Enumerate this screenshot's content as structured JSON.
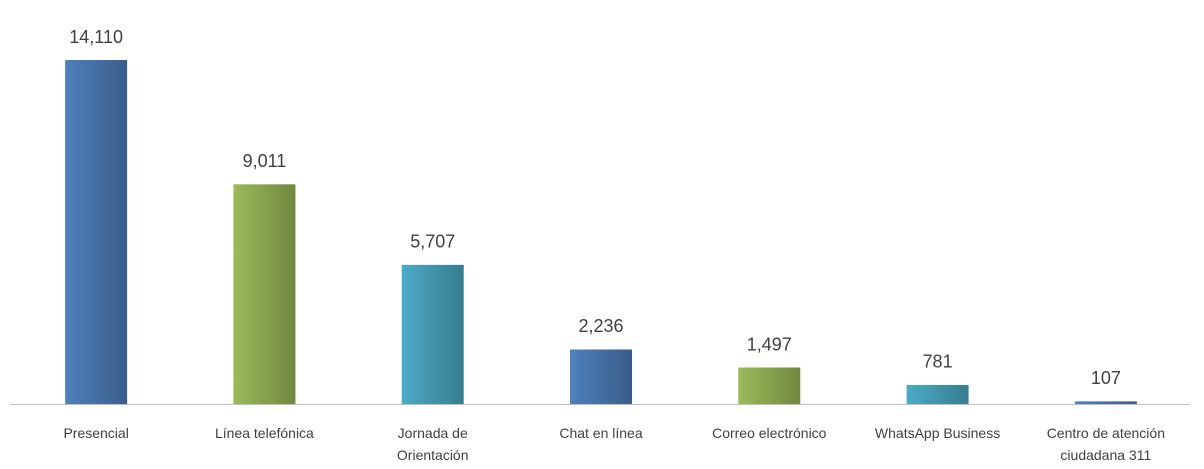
{
  "chart_data": {
    "type": "bar",
    "categories": [
      "Presencial",
      "Línea telefónica",
      "Jornada de Orientación",
      "Chat en línea",
      "Correo electrónico",
      "WhatsApp Business",
      "Centro de atención ciudadana 311"
    ],
    "values": [
      14110,
      9011,
      5707,
      2236,
      1497,
      781,
      107
    ],
    "value_labels": [
      "14,110",
      "9,011",
      "5,707",
      "2,236",
      "1,497",
      "781",
      "107"
    ],
    "colors": [
      "#4f81bd",
      "#9bbb59",
      "#4bacc6",
      "#4f81bd",
      "#9bbb59",
      "#4bacc6",
      "#4f81bd"
    ]
  }
}
